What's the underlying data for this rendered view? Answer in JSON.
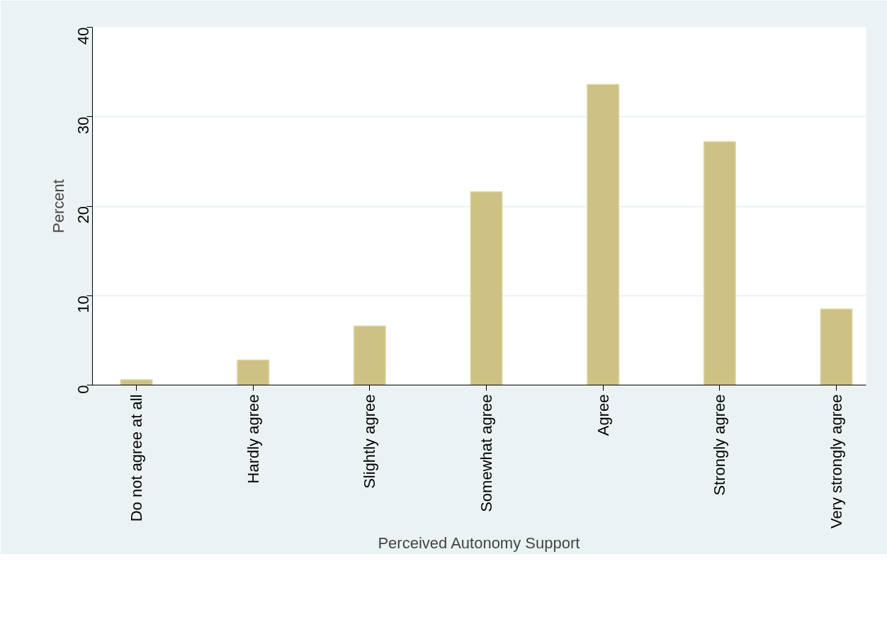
{
  "chart_data": {
    "type": "bar",
    "xlabel": "Perceived Autonomy Support",
    "ylabel": "Percent",
    "categories": [
      "Do not agree at all",
      "Hardly agree",
      "Slightly agree",
      "Somewhat agree",
      "Agree",
      "Strongly agree",
      "Very strongly agree"
    ],
    "values": [
      0.6,
      2.8,
      6.6,
      21.6,
      33.6,
      27.2,
      8.5
    ],
    "color": "#cdc283",
    "ylim": [
      0,
      40
    ],
    "yticks": [
      0,
      10,
      20,
      30,
      40
    ],
    "grid": "y"
  }
}
